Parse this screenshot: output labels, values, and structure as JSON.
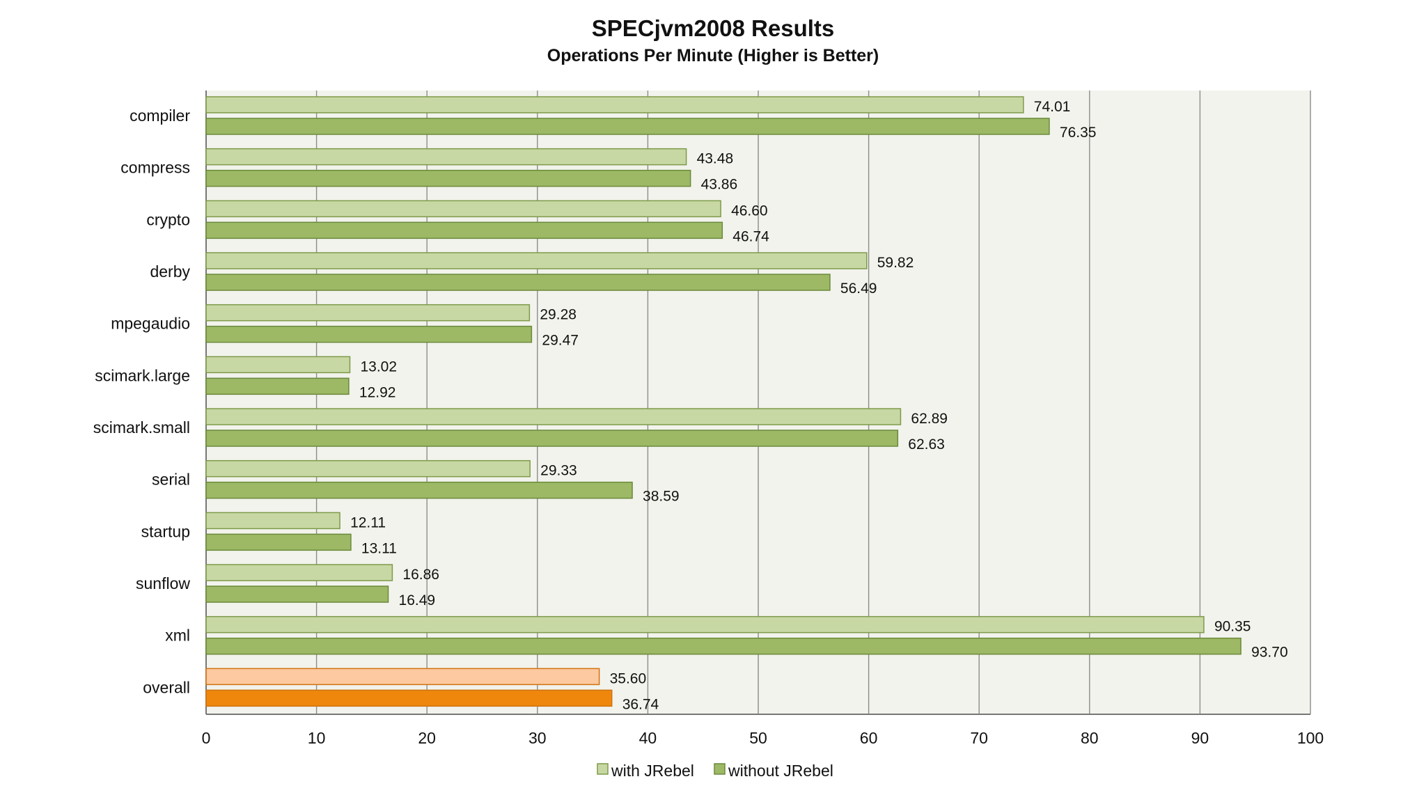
{
  "colors": {
    "with": "#c8d8a4",
    "without": "#9db966",
    "with_border": "#7e9a4a",
    "without_border": "#6b8a3a",
    "overall_with": "#fcc9a0",
    "overall_without": "#ee870c",
    "overall_border": "#d07312",
    "plot_bg": "#f2f3ec",
    "grid": "#8c8c8c"
  },
  "chart_data": {
    "type": "bar",
    "orientation": "horizontal",
    "title": "SPECjvm2008 Results",
    "subtitle": "Operations Per Minute (Higher is Better)",
    "categories": [
      "compiler",
      "compress",
      "crypto",
      "derby",
      "mpegaudio",
      "scimark.large",
      "scimark.small",
      "serial",
      "startup",
      "sunflow",
      "xml",
      "overall"
    ],
    "series": [
      {
        "name": "with JRebel",
        "values": [
          74.01,
          43.48,
          46.6,
          59.82,
          29.28,
          13.02,
          62.89,
          29.33,
          12.11,
          16.86,
          90.35,
          35.6
        ],
        "labels": [
          "74.01",
          "43.48",
          "46.60",
          "59.82",
          "29.28",
          "13.02",
          "62.89",
          "29.33",
          "12.11",
          "16.86",
          "90.35",
          "35.60"
        ]
      },
      {
        "name": "without JRebel",
        "values": [
          76.35,
          43.86,
          46.74,
          56.49,
          29.47,
          12.92,
          62.63,
          38.59,
          13.11,
          16.49,
          93.7,
          36.74
        ],
        "labels": [
          "76.35",
          "43.86",
          "46.74",
          "56.49",
          "29.47",
          "12.92",
          "62.63",
          "38.59",
          "13.11",
          "16.49",
          "93.70",
          "36.74"
        ]
      }
    ],
    "xlim": [
      0,
      100
    ],
    "xticks": [
      "0",
      "10",
      "20",
      "30",
      "40",
      "50",
      "60",
      "70",
      "80",
      "90",
      "100"
    ],
    "xlabel": "",
    "ylabel": "",
    "grid": true,
    "legend_position": "bottom-center"
  }
}
